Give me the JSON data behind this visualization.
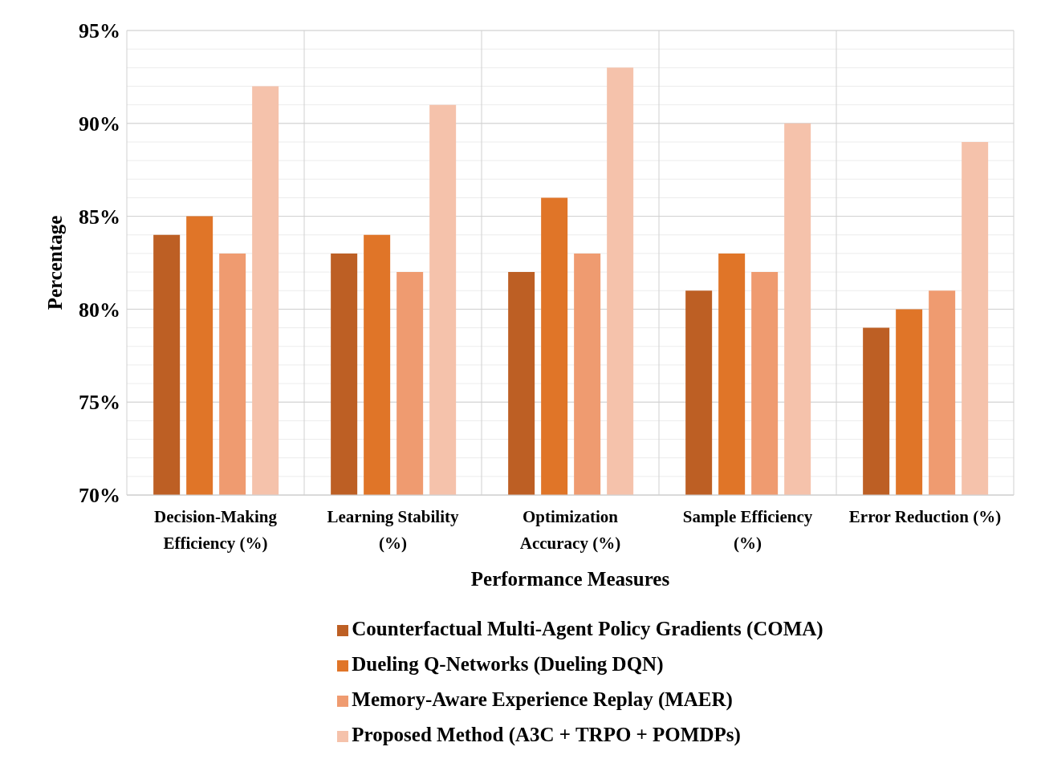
{
  "chart_data": {
    "type": "bar",
    "xlabel": "Performance Measures",
    "ylabel": "Percentage",
    "categories": [
      "Decision-Making Efficiency (%)",
      "Learning Stability (%)",
      "Optimization Accuracy (%)",
      "Sample Efficiency (%)",
      "Error Reduction (%)"
    ],
    "series": [
      {
        "name": "Counterfactual Multi-Agent Policy Gradients (COMA)",
        "color": "#bd5f24",
        "values": [
          84,
          83,
          82,
          81,
          79
        ]
      },
      {
        "name": "Dueling Q-Networks (Dueling DQN)",
        "color": "#e07528",
        "values": [
          85,
          84,
          86,
          83,
          80
        ]
      },
      {
        "name": "Memory-Aware Experience Replay (MAER)",
        "color": "#ef9b70",
        "values": [
          83,
          82,
          83,
          82,
          81
        ]
      },
      {
        "name": "Proposed Method (A3C + TRPO + POMDPs)",
        "color": "#f5c2ab",
        "values": [
          92,
          91,
          93,
          90,
          89
        ]
      }
    ],
    "ylim": [
      70,
      95
    ],
    "yticks": [
      {
        "value": 70,
        "label": "70%"
      },
      {
        "value": 75,
        "label": "75%"
      },
      {
        "value": 80,
        "label": "80%"
      },
      {
        "value": 85,
        "label": "85%"
      },
      {
        "value": 90,
        "label": "90%"
      },
      {
        "value": 95,
        "label": "95%"
      }
    ],
    "grid": true,
    "legend": "bottom"
  }
}
